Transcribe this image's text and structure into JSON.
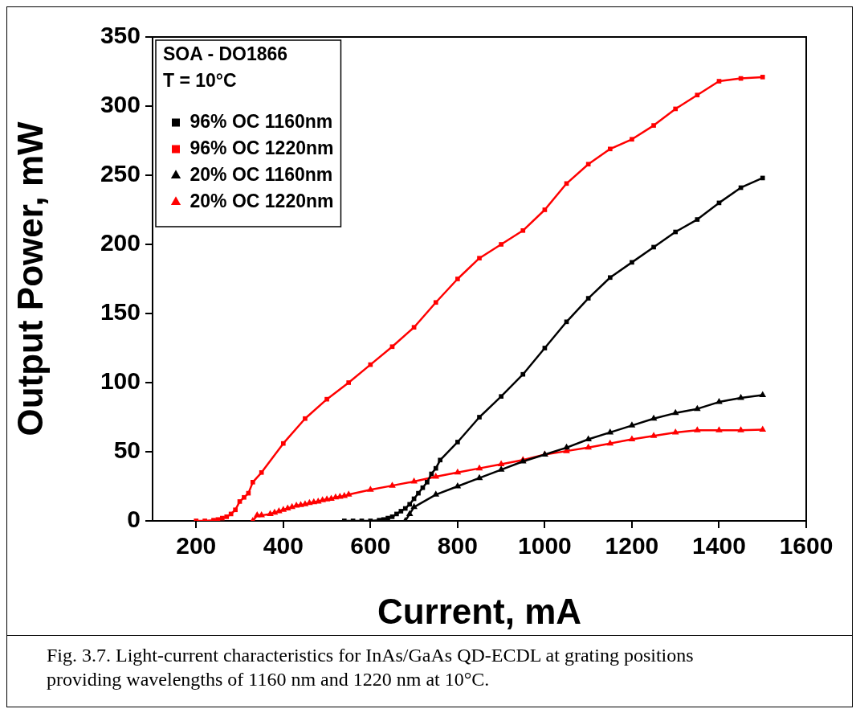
{
  "chart_data": {
    "type": "line",
    "xlabel": "Current, mA",
    "ylabel": "Output Power, mW",
    "legend_title": "SOA - DO1866",
    "legend": "top left",
    "annotations": [
      "T = 10°C",
      "Fig. 3.7. Light-current characteristics for InAs/GaAs QD-ECDL at grating positions providing wavelengths of 1160 nm and 1220 nm at 10°C."
    ],
    "xlim": [
      100,
      1600
    ],
    "xticks": [
      200,
      400,
      600,
      800,
      1000,
      1200,
      1400,
      1600
    ],
    "ylim": [
      0,
      350
    ],
    "yticks": [
      0,
      50,
      100,
      150,
      200,
      250,
      300,
      350
    ],
    "grid": false,
    "line_style": "solid",
    "series": [
      {
        "name": "96% OC 1160nm",
        "color": "#000000",
        "marker": "square",
        "x": [
          540,
          560,
          580,
          600,
          620,
          630,
          640,
          650,
          660,
          670,
          680,
          690,
          700,
          710,
          720,
          730,
          740,
          750,
          760,
          800,
          850,
          900,
          950,
          1000,
          1050,
          1100,
          1150,
          1200,
          1250,
          1300,
          1350,
          1400,
          1450,
          1500
        ],
        "values": [
          0,
          0,
          0,
          0,
          0.5,
          1,
          2,
          3,
          5,
          7,
          9,
          12,
          16,
          20,
          24,
          28,
          34,
          38,
          44,
          57,
          75,
          90,
          106,
          125,
          144,
          161,
          176,
          187,
          198,
          209,
          218,
          230,
          241,
          248
        ]
      },
      {
        "name": "96% OC 1220nm",
        "color": "#ff0000",
        "marker": "square",
        "x": [
          200,
          220,
          240,
          250,
          260,
          270,
          280,
          290,
          300,
          310,
          320,
          330,
          350,
          400,
          450,
          500,
          550,
          600,
          650,
          700,
          750,
          800,
          850,
          900,
          950,
          1000,
          1050,
          1100,
          1150,
          1200,
          1250,
          1300,
          1350,
          1400,
          1450,
          1500
        ],
        "values": [
          0,
          0,
          0.5,
          1,
          2,
          3,
          5,
          8,
          14,
          17,
          20,
          28,
          35,
          56,
          74,
          88,
          100,
          113,
          126,
          140,
          158,
          175,
          190,
          200,
          210,
          225,
          244,
          258,
          269,
          276,
          286,
          298,
          308,
          318,
          320,
          321
        ]
      },
      {
        "name": "20% OC 1160nm",
        "color": "#000000",
        "marker": "triangle",
        "x": [
          680,
          690,
          700,
          750,
          800,
          850,
          900,
          950,
          1000,
          1050,
          1100,
          1150,
          1200,
          1250,
          1300,
          1350,
          1400,
          1450,
          1500
        ],
        "values": [
          0,
          5,
          10,
          19,
          25,
          31,
          37,
          43,
          48,
          53,
          59,
          64,
          69,
          74,
          78,
          81,
          86,
          89,
          91
        ]
      },
      {
        "name": "20% OC 1220nm",
        "color": "#ff0000",
        "marker": "triangle",
        "x": [
          330,
          340,
          350,
          370,
          380,
          390,
          400,
          410,
          420,
          430,
          440,
          450,
          460,
          470,
          480,
          490,
          500,
          510,
          520,
          530,
          540,
          550,
          600,
          650,
          700,
          750,
          800,
          850,
          900,
          950,
          1000,
          1050,
          1100,
          1150,
          1200,
          1250,
          1300,
          1350,
          1400,
          1450,
          1500
        ],
        "values": [
          0,
          4,
          4,
          5,
          6,
          7,
          8,
          9,
          10,
          11,
          11.5,
          12,
          13,
          13.5,
          14,
          15,
          15.5,
          16,
          17,
          17.5,
          18,
          19,
          22.5,
          25.5,
          28.5,
          32,
          35,
          38,
          41,
          44,
          48,
          50.5,
          53,
          56,
          59,
          61.5,
          64,
          65.5,
          65.5,
          65.5,
          66
        ]
      }
    ]
  }
}
